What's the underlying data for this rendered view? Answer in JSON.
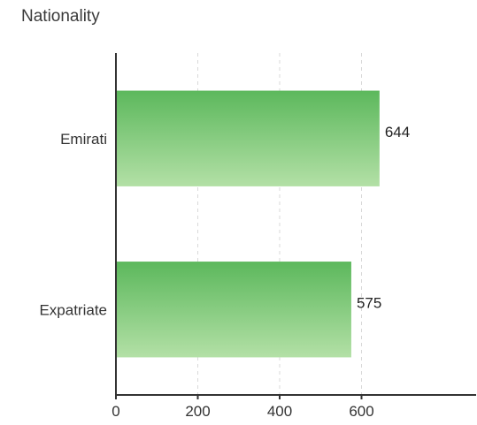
{
  "chart_data": {
    "type": "bar",
    "orientation": "horizontal",
    "title": "Nationality",
    "categories": [
      "Emirati",
      "Expatriate"
    ],
    "values": [
      644,
      575
    ],
    "value_labels": [
      "644",
      "575"
    ],
    "xlabel": "",
    "ylabel": "",
    "xlim": [
      0,
      880
    ],
    "xticks": [
      0,
      200,
      400,
      600
    ],
    "xtick_labels": [
      "0",
      "200",
      "400",
      "600"
    ],
    "grid": "vertical dashed",
    "legend": "none",
    "colors": {
      "bar_top": "#5cb85c",
      "bar_bottom": "#b3e0a6",
      "axis": "#333333",
      "grid": "#d9d9d9"
    }
  }
}
